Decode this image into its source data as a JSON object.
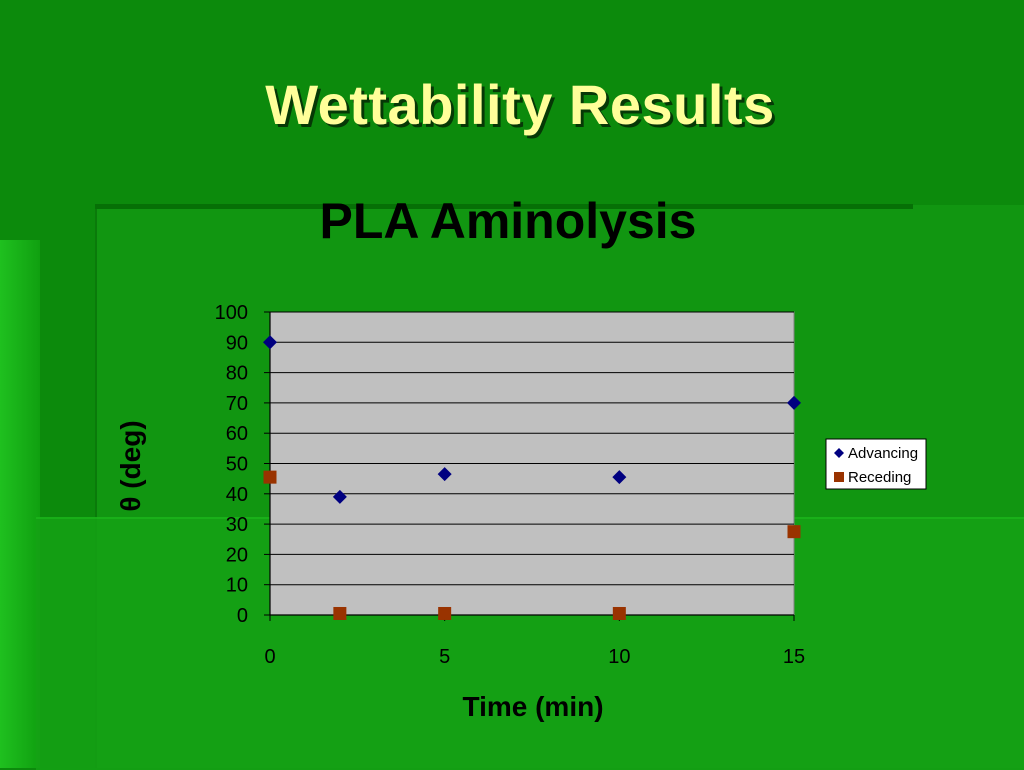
{
  "slide": {
    "title": "Wettability Results"
  },
  "chart_data": {
    "type": "scatter",
    "title": "PLA Aminolysis",
    "xlabel": "Time (min)",
    "ylabel": "θ (deg)",
    "xlim": [
      0,
      15
    ],
    "ylim": [
      0,
      100
    ],
    "x_ticks": [
      "0",
      "5",
      "10",
      "15"
    ],
    "y_ticks": [
      "0",
      "10",
      "20",
      "30",
      "40",
      "50",
      "60",
      "70",
      "80",
      "90",
      "100"
    ],
    "grid": true,
    "legend_position": "right",
    "series": [
      {
        "name": "Advancing",
        "marker": "diamond",
        "color": "#000080",
        "points": [
          [
            0,
            90
          ],
          [
            2,
            39
          ],
          [
            5,
            46.5
          ],
          [
            10,
            45.5
          ],
          [
            15,
            70
          ]
        ]
      },
      {
        "name": "Receding",
        "marker": "square",
        "color": "#993300",
        "points": [
          [
            0,
            45.5
          ],
          [
            2,
            0.5
          ],
          [
            5,
            0.5
          ],
          [
            10,
            0.5
          ],
          [
            15,
            27.5
          ]
        ]
      }
    ],
    "plot_background": "#c0c0c0"
  }
}
